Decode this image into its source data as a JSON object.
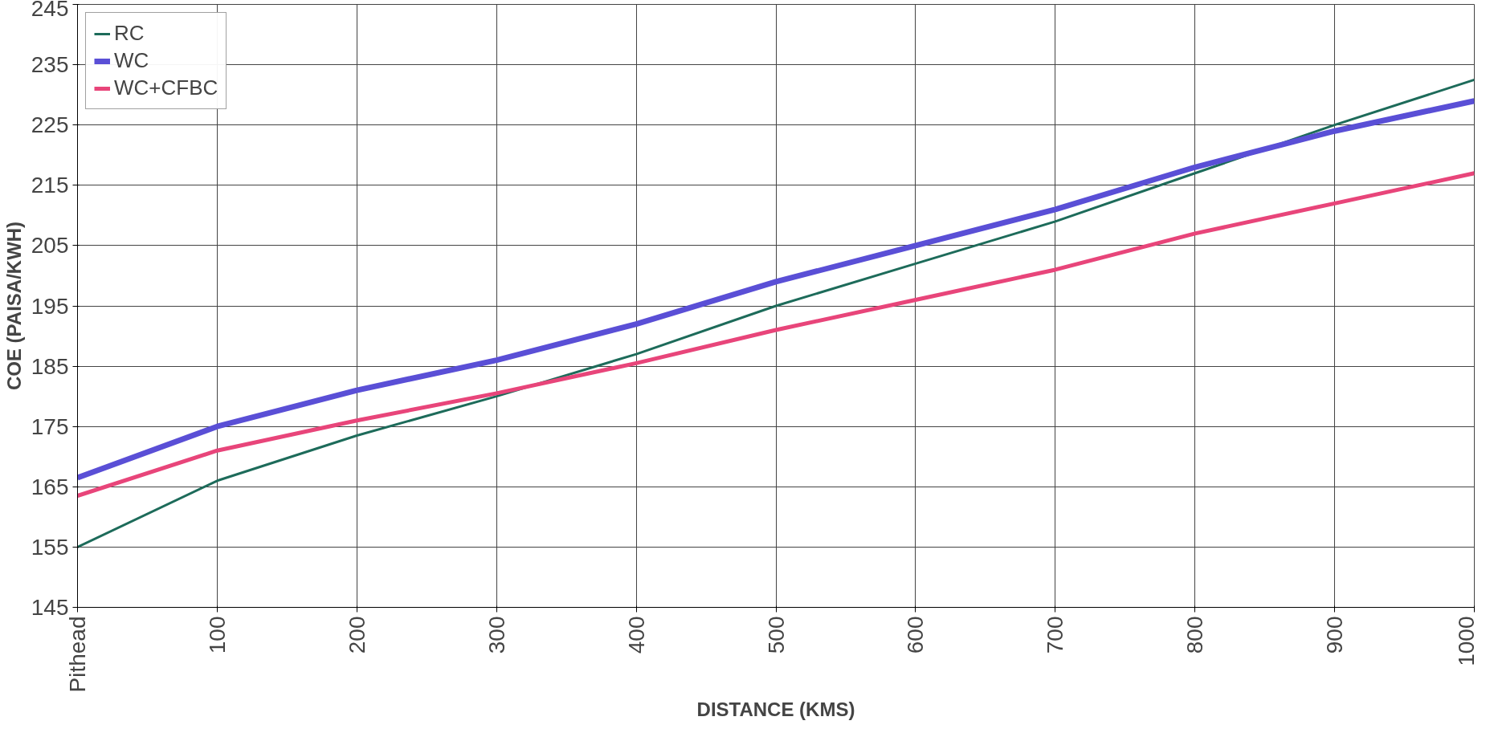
{
  "chart_data": {
    "type": "line",
    "xlabel": "DISTANCE (KMS)",
    "ylabel": "COE (PAISA/KWH)",
    "categories": [
      "Pithead",
      "100",
      "200",
      "300",
      "400",
      "500",
      "600",
      "700",
      "800",
      "900",
      "1000"
    ],
    "series": [
      {
        "name": "RC",
        "color": "#1d6b5a",
        "values": [
          155,
          166,
          173.5,
          180,
          187,
          195,
          202,
          209,
          217,
          225,
          232.5
        ]
      },
      {
        "name": "WC",
        "color": "#5a4fd6",
        "values": [
          166.5,
          175,
          181,
          186,
          192,
          199,
          205,
          211,
          218,
          224,
          229
        ]
      },
      {
        "name": "WC+CFBC",
        "color": "#e8457a",
        "values": [
          163.5,
          171,
          176,
          180.5,
          185.5,
          191,
          196,
          201,
          207,
          212,
          217
        ]
      }
    ],
    "ylim": [
      145,
      245
    ],
    "yticks": [
      145,
      155,
      165,
      175,
      185,
      195,
      205,
      215,
      225,
      235,
      245
    ],
    "grid": true,
    "legend": "top left",
    "marker": "none",
    "line_style": "solid"
  }
}
